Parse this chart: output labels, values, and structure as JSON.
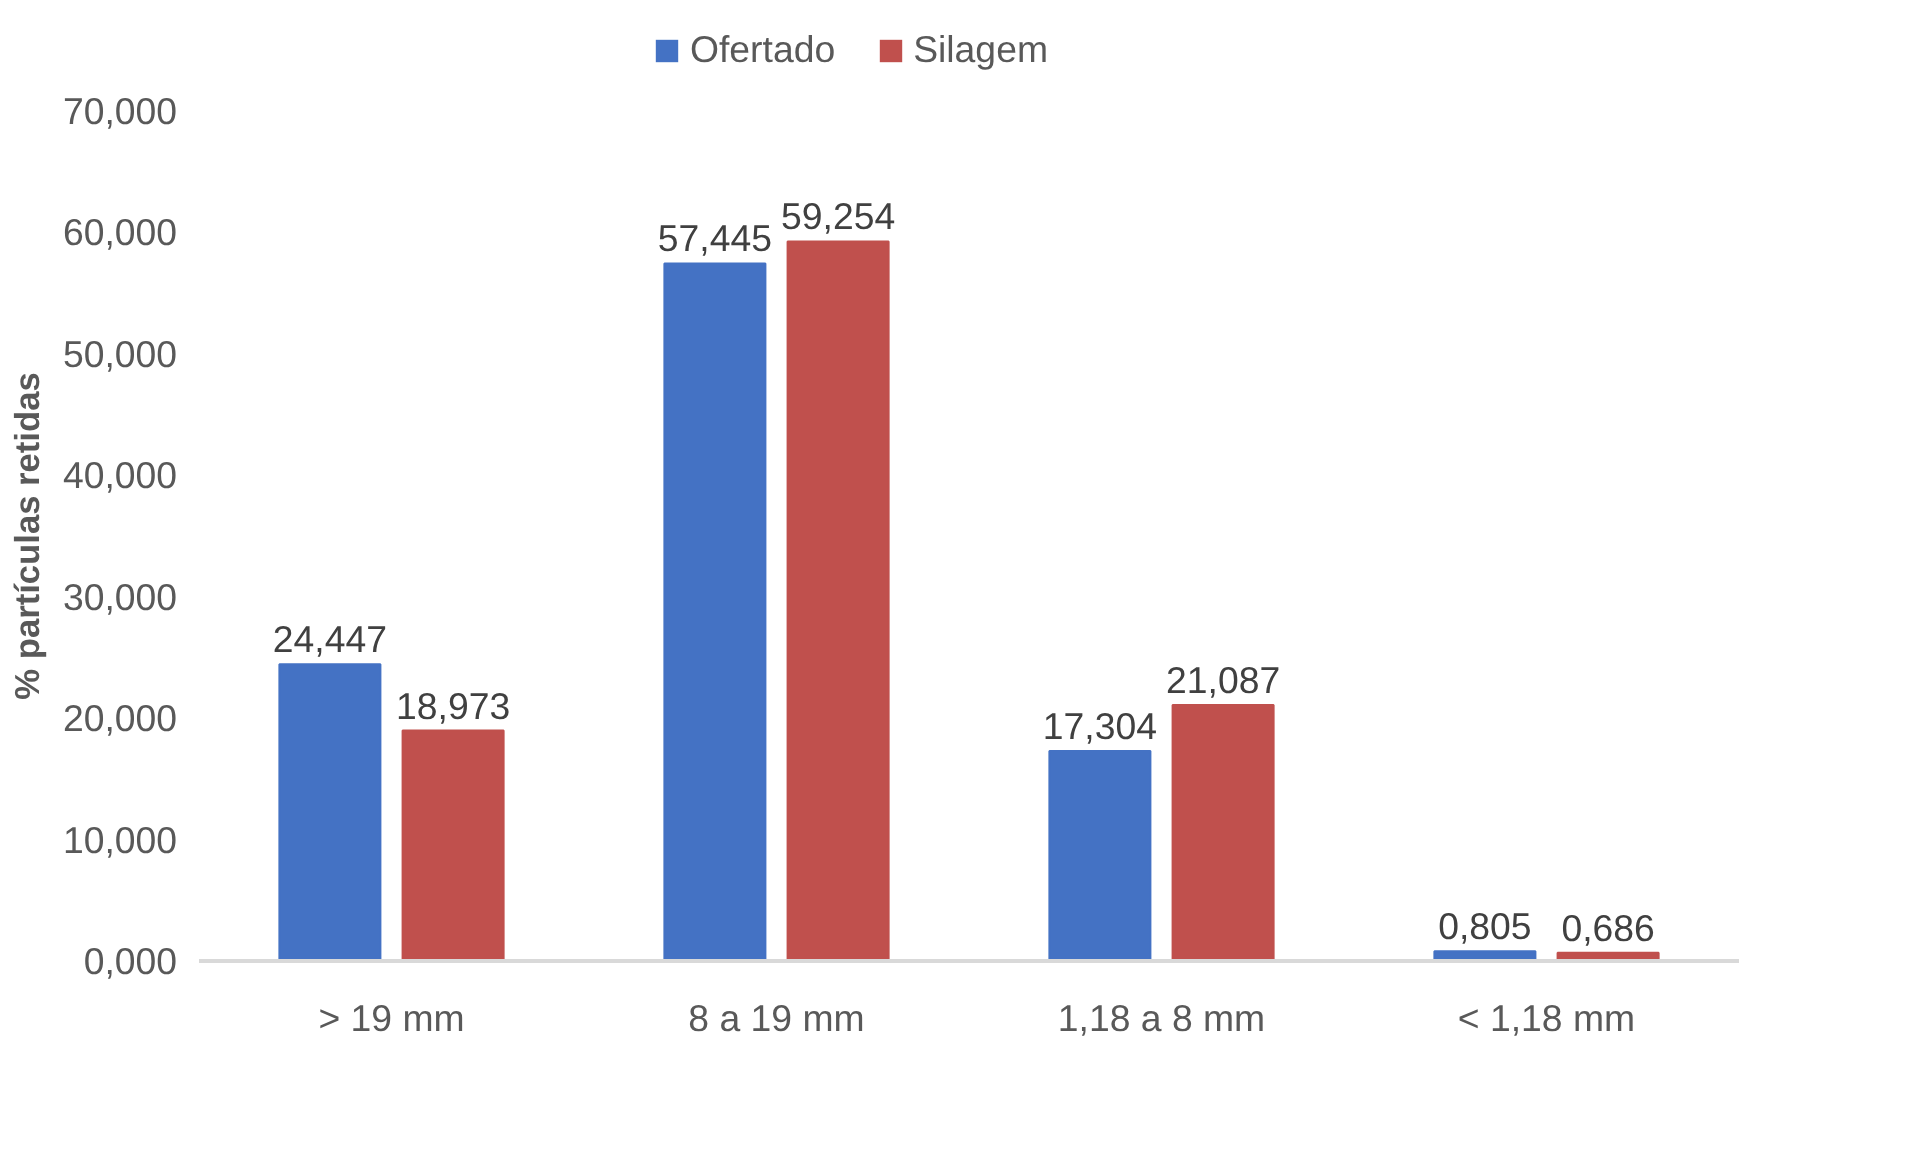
{
  "chart_data": {
    "type": "bar",
    "ylabel": "% partículas retidas",
    "categories": [
      "> 19 mm",
      "8 a 19 mm",
      "1,18 a 8 mm",
      "< 1,18 mm"
    ],
    "series": [
      {
        "name": "Ofertado",
        "color": "#4472c4",
        "values": [
          24.447,
          57.445,
          17.304,
          0.805
        ],
        "value_labels": [
          "24,447",
          "57,445",
          "17,304",
          "0,805"
        ]
      },
      {
        "name": "Silagem",
        "color": "#c0504d",
        "values": [
          18.973,
          59.254,
          21.087,
          0.686
        ],
        "value_labels": [
          "18,973",
          "59,254",
          "21,087",
          "0,686"
        ]
      }
    ],
    "ylim": [
      0,
      70
    ],
    "yticks": [
      {
        "value": 0,
        "label": "0,000"
      },
      {
        "value": 10,
        "label": "10,000"
      },
      {
        "value": 20,
        "label": "20,000"
      },
      {
        "value": 30,
        "label": "30,000"
      },
      {
        "value": 40,
        "label": "40,000"
      },
      {
        "value": 50,
        "label": "50,000"
      },
      {
        "value": 60,
        "label": "60,000"
      },
      {
        "value": 70,
        "label": "70,000"
      }
    ],
    "grid": false,
    "legend": "top"
  }
}
